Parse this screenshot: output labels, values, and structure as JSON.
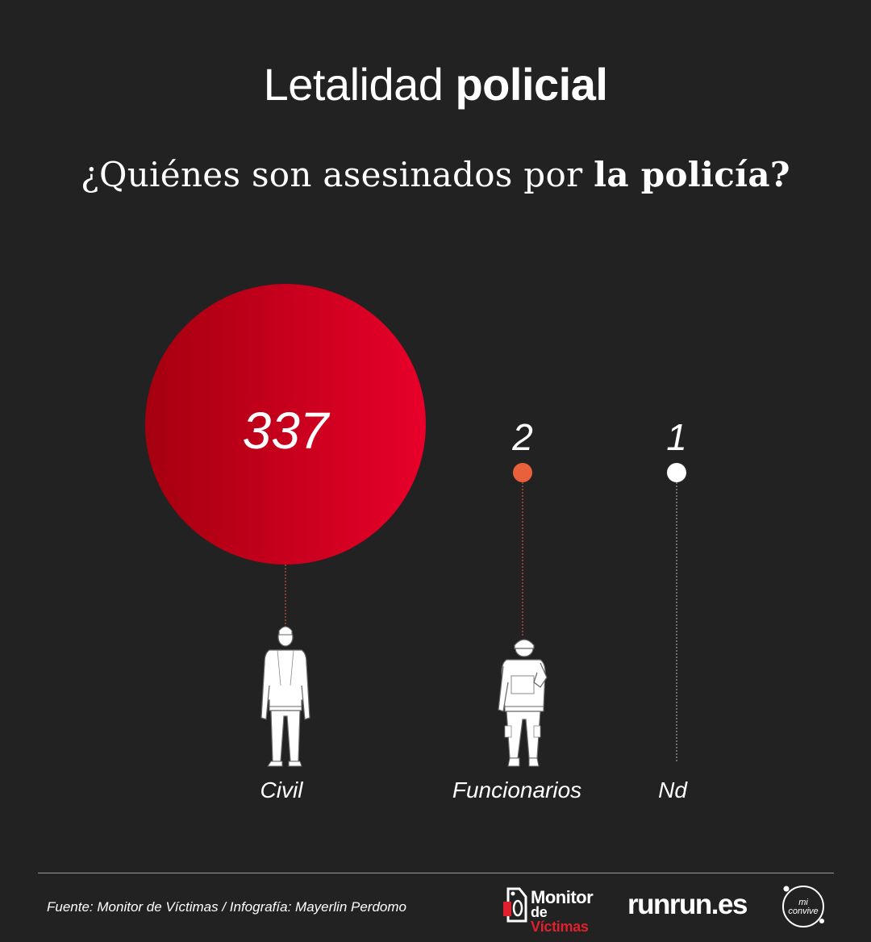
{
  "header": {
    "title_light": "Letalidad",
    "title_bold": "policial",
    "subtitle_light": "¿Quiénes son asesinados por",
    "subtitle_bold": "la policía?"
  },
  "chart_data": {
    "type": "bubble",
    "categories": [
      "Civil",
      "Funcionarios",
      "Nd"
    ],
    "values": [
      337,
      2,
      1
    ],
    "value_labels": [
      "337",
      "2",
      "1"
    ],
    "colors": [
      "#d0021b",
      "#e8613a",
      "#ffffff"
    ],
    "icons": [
      "civilian-figure-icon",
      "officer-figure-icon",
      ""
    ]
  },
  "footer": {
    "source": "Fuente: Monitor de Víctimas / Infografía: Mayerlin Perdomo",
    "logos": {
      "monitor_line1": "Monitor",
      "monitor_line2a": "de",
      "monitor_line2b": "Víctimas",
      "runrunes": "runrun.es",
      "convive_line1": "mi",
      "convive_line2": "convive"
    }
  }
}
